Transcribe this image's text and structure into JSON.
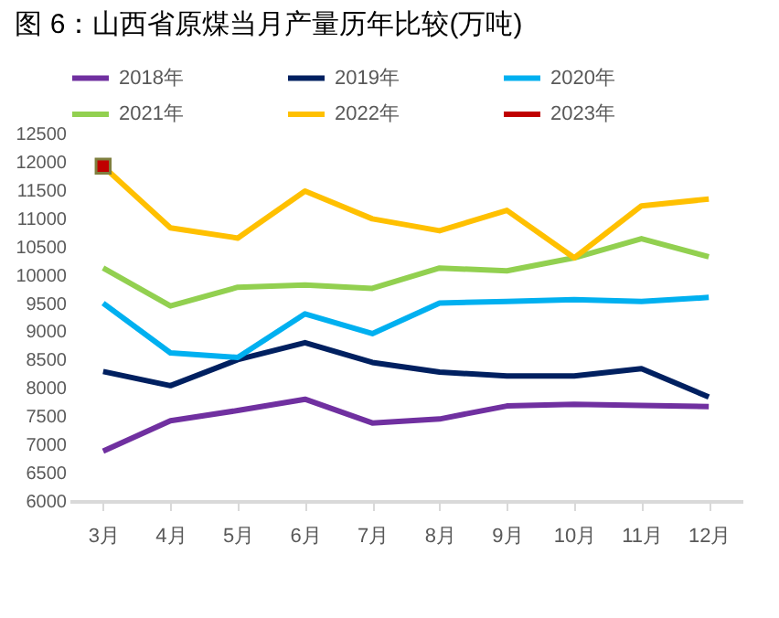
{
  "chart_data": {
    "type": "line",
    "title": "图 6：山西省原煤当月产量历年比较(万吨)",
    "categories": [
      "3月",
      "4月",
      "5月",
      "6月",
      "7月",
      "8月",
      "9月",
      "10月",
      "11月",
      "12月"
    ],
    "series": [
      {
        "name": "2018年",
        "color": "#7030a0",
        "values": [
          6880,
          7420,
          7600,
          7800,
          7380,
          7450,
          7680,
          7710,
          7690,
          7670
        ]
      },
      {
        "name": "2019年",
        "color": "#002060",
        "values": [
          8290,
          8040,
          8500,
          8800,
          8450,
          8280,
          8210,
          8210,
          8340,
          7840
        ]
      },
      {
        "name": "2020年",
        "color": "#00b0f0",
        "values": [
          9500,
          8620,
          8540,
          9310,
          8960,
          9500,
          9530,
          9560,
          9530,
          9600
        ]
      },
      {
        "name": "2021年",
        "color": "#92d050",
        "values": [
          10120,
          9450,
          9780,
          9820,
          9760,
          10120,
          10070,
          10300,
          10640,
          10320
        ]
      },
      {
        "name": "2022年",
        "color": "#ffc000",
        "values": [
          11920,
          10830,
          10650,
          11480,
          10990,
          10780,
          11140,
          10300,
          11220,
          11340
        ]
      },
      {
        "name": "2023年",
        "color": "#c00000",
        "marker": "square",
        "values": [
          11920,
          null,
          null,
          null,
          null,
          null,
          null,
          null,
          null,
          null
        ]
      }
    ],
    "ylim": [
      6000,
      12500
    ],
    "yticks": [
      6000,
      6500,
      7000,
      7500,
      8000,
      8500,
      9000,
      9500,
      10000,
      10500,
      11000,
      11500,
      12000,
      12500
    ],
    "grid": false,
    "legend": "top"
  }
}
